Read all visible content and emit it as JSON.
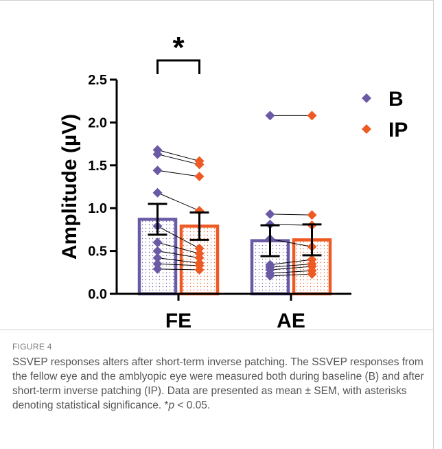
{
  "chart_data": {
    "type": "bar",
    "categories": [
      "FE",
      "AE"
    ],
    "ylabel": "Amplitude (µV)",
    "ylim": [
      0,
      2.5
    ],
    "yticks": [
      "0.0",
      "0.5",
      "1.0",
      "1.5",
      "2.0",
      "2.5"
    ],
    "series": [
      {
        "name": "B",
        "color": "#6a5aa6",
        "values": [
          0.87,
          0.62
        ],
        "error": [
          0.18,
          0.18
        ],
        "points": [
          [
            1.68,
            1.63,
            1.44,
            1.18,
            0.79,
            0.6,
            0.5,
            0.42,
            0.35,
            0.29
          ],
          [
            2.08,
            0.93,
            0.81,
            0.64,
            0.34,
            0.31,
            0.28,
            0.24,
            0.21
          ]
        ]
      },
      {
        "name": "IP",
        "color": "#ee5a24",
        "values": [
          0.79,
          0.63
        ],
        "error": [
          0.16,
          0.18
        ],
        "points": [
          [
            1.55,
            1.51,
            1.37,
            0.97,
            0.53,
            0.47,
            0.42,
            0.36,
            0.33,
            0.28
          ],
          [
            2.08,
            0.92,
            0.8,
            0.55,
            0.4,
            0.35,
            0.32,
            0.27,
            0.23
          ]
        ]
      }
    ],
    "legend_position": "top-right",
    "significance": {
      "label": "*",
      "category": "FE"
    }
  },
  "figure_label": "FIGURE 4",
  "caption": {
    "main": "SSVEP responses alters after short-term inverse patching. The SSVEP responses from the fellow eye and the amblyopic eye were measured both during baseline (B) and after short-term inverse patching (IP). Data are presented as mean ± SEM, with asterisks denoting statistical significance. *",
    "p_symbol": "p",
    "tail": " < 0.05."
  }
}
